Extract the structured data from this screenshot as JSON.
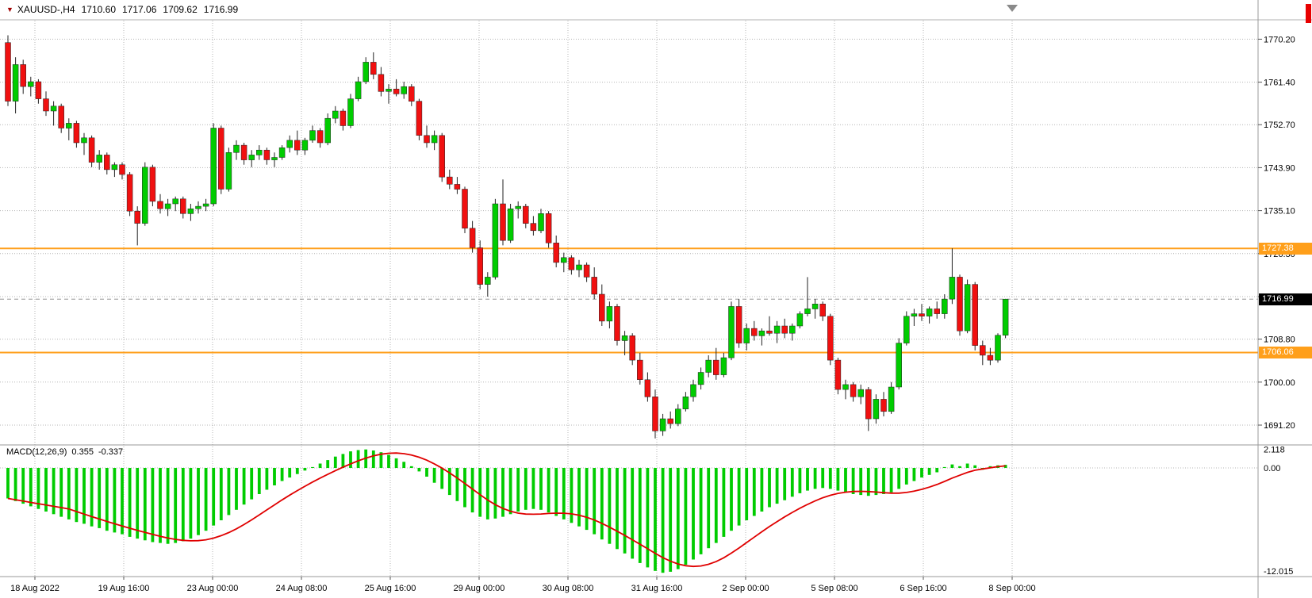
{
  "header": {
    "marker_icon": "▼",
    "symbol": "XAUUSD-,H4",
    "open": "1710.60",
    "high": "1717.06",
    "low": "1709.62",
    "close": "1716.99"
  },
  "macd_panel": {
    "label": "MACD(12,26,9)",
    "main_value": "0.355",
    "signal_value": "-0.337",
    "axis_labels": [
      "2.118",
      "0.00",
      "-12.015"
    ]
  },
  "price_axis": {
    "tick_labels": [
      "1770.20",
      "1761.40",
      "1752.70",
      "1743.90",
      "1735.10",
      "1726.30",
      "1717.50",
      "1708.80",
      "1700.00",
      "1691.20"
    ],
    "badges": [
      {
        "label": "1727.38",
        "price": 1727.38,
        "role": "resistance-level",
        "bg": "#ff9f1a",
        "fg": "#ffffff"
      },
      {
        "label": "1716.99",
        "price": 1716.99,
        "role": "current-price",
        "bg": "#000000",
        "fg": "#ffffff"
      },
      {
        "label": "1706.06",
        "price": 1706.06,
        "role": "support-level",
        "bg": "#ff9f1a",
        "fg": "#ffffff"
      }
    ]
  },
  "time_axis": {
    "tick_labels": [
      "18 Aug 2022",
      "19 Aug 16:00",
      "23 Aug 00:00",
      "24 Aug 08:00",
      "25 Aug 16:00",
      "29 Aug 00:00",
      "30 Aug 08:00",
      "31 Aug 16:00",
      "2 Sep 00:00",
      "5 Sep 08:00",
      "6 Sep 16:00",
      "8 Sep 00:00"
    ]
  },
  "chart_data": {
    "type": "candlestick",
    "symbol": "XAUUSD-",
    "timeframe": "H4",
    "title": "XAUUSD-,H4 1710.60 1717.06 1709.62 1716.99",
    "price_range": [
      1686,
      1774
    ],
    "gridline_prices": [
      1770.2,
      1761.4,
      1752.7,
      1743.9,
      1735.1,
      1726.3,
      1717.5,
      1708.8,
      1700.0,
      1691.2
    ],
    "horizontal_lines": [
      {
        "price": 1727.38,
        "color": "#ff9f1a",
        "width": 2
      },
      {
        "price": 1706.06,
        "color": "#ff9f1a",
        "width": 2
      }
    ],
    "current_price": 1716.99,
    "colors": {
      "up": "#00cc00",
      "down": "#f01010",
      "wick": "#222222",
      "grid": "#b4b4b4"
    },
    "candles": [
      [
        1769.5,
        1771.0,
        1756.5,
        1757.5
      ],
      [
        1757.5,
        1766.5,
        1755.0,
        1765.0
      ],
      [
        1765.0,
        1766.0,
        1759.0,
        1760.5
      ],
      [
        1760.5,
        1762.5,
        1758.5,
        1761.5
      ],
      [
        1761.5,
        1762.0,
        1757.0,
        1758.0
      ],
      [
        1758.0,
        1759.5,
        1754.5,
        1755.5
      ],
      [
        1755.5,
        1757.5,
        1752.5,
        1756.5
      ],
      [
        1756.5,
        1757.0,
        1751.0,
        1752.0
      ],
      [
        1752.0,
        1754.0,
        1749.5,
        1753.0
      ],
      [
        1753.0,
        1753.5,
        1748.0,
        1749.0
      ],
      [
        1749.0,
        1751.0,
        1746.5,
        1750.0
      ],
      [
        1750.0,
        1750.5,
        1744.0,
        1745.0
      ],
      [
        1745.0,
        1747.5,
        1743.5,
        1746.5
      ],
      [
        1746.5,
        1747.0,
        1742.5,
        1743.5
      ],
      [
        1743.5,
        1745.0,
        1742.0,
        1744.5
      ],
      [
        1744.5,
        1745.0,
        1741.5,
        1742.5
      ],
      [
        1742.5,
        1743.0,
        1734.0,
        1735.0
      ],
      [
        1735.0,
        1736.0,
        1728.0,
        1732.5
      ],
      [
        1732.5,
        1745.0,
        1732.0,
        1744.0
      ],
      [
        1744.0,
        1744.5,
        1736.0,
        1737.0
      ],
      [
        1737.0,
        1738.5,
        1734.5,
        1735.5
      ],
      [
        1735.5,
        1737.5,
        1734.0,
        1736.5
      ],
      [
        1736.5,
        1738.0,
        1735.0,
        1737.5
      ],
      [
        1737.5,
        1738.0,
        1733.5,
        1734.5
      ],
      [
        1734.5,
        1736.5,
        1733.0,
        1735.5
      ],
      [
        1735.5,
        1737.0,
        1734.5,
        1736.0
      ],
      [
        1736.0,
        1737.5,
        1735.0,
        1736.5
      ],
      [
        1736.5,
        1753.0,
        1736.0,
        1752.0
      ],
      [
        1752.0,
        1752.5,
        1738.5,
        1739.5
      ],
      [
        1739.5,
        1748.0,
        1739.0,
        1747.0
      ],
      [
        1747.0,
        1749.5,
        1745.5,
        1748.5
      ],
      [
        1748.5,
        1749.0,
        1744.5,
        1745.5
      ],
      [
        1745.5,
        1747.5,
        1744.0,
        1746.5
      ],
      [
        1746.5,
        1748.5,
        1745.5,
        1747.5
      ],
      [
        1747.5,
        1748.0,
        1744.5,
        1745.5
      ],
      [
        1745.5,
        1747.0,
        1744.0,
        1746.0
      ],
      [
        1746.0,
        1748.5,
        1745.5,
        1748.0
      ],
      [
        1748.0,
        1750.5,
        1747.0,
        1749.5
      ],
      [
        1749.5,
        1751.5,
        1746.5,
        1747.5
      ],
      [
        1747.5,
        1750.0,
        1746.5,
        1749.5
      ],
      [
        1749.5,
        1752.5,
        1749.0,
        1751.5
      ],
      [
        1751.5,
        1752.0,
        1748.0,
        1749.0
      ],
      [
        1749.0,
        1755.0,
        1748.5,
        1754.0
      ],
      [
        1754.0,
        1756.5,
        1753.0,
        1755.5
      ],
      [
        1755.5,
        1756.0,
        1751.5,
        1752.5
      ],
      [
        1752.5,
        1759.0,
        1752.0,
        1758.0
      ],
      [
        1758.0,
        1762.5,
        1757.5,
        1761.5
      ],
      [
        1761.5,
        1766.5,
        1761.0,
        1765.5
      ],
      [
        1765.5,
        1767.5,
        1762.0,
        1763.0
      ],
      [
        1763.0,
        1764.5,
        1758.5,
        1759.5
      ],
      [
        1759.5,
        1761.0,
        1757.0,
        1760.0
      ],
      [
        1760.0,
        1762.0,
        1758.5,
        1759.0
      ],
      [
        1759.0,
        1761.5,
        1758.0,
        1760.5
      ],
      [
        1760.5,
        1761.0,
        1756.5,
        1757.5
      ],
      [
        1757.5,
        1758.0,
        1749.5,
        1750.5
      ],
      [
        1750.5,
        1752.5,
        1748.0,
        1749.0
      ],
      [
        1749.0,
        1751.5,
        1747.5,
        1750.5
      ],
      [
        1750.5,
        1751.0,
        1741.0,
        1742.0
      ],
      [
        1742.0,
        1743.5,
        1739.5,
        1740.5
      ],
      [
        1740.5,
        1742.0,
        1738.5,
        1739.5
      ],
      [
        1739.5,
        1740.0,
        1730.5,
        1731.5
      ],
      [
        1731.5,
        1733.0,
        1726.5,
        1727.5
      ],
      [
        1727.5,
        1729.0,
        1719.0,
        1720.0
      ],
      [
        1720.0,
        1722.5,
        1717.5,
        1721.5
      ],
      [
        1721.5,
        1737.5,
        1721.0,
        1736.5
      ],
      [
        1736.5,
        1741.5,
        1728.0,
        1729.0
      ],
      [
        1729.0,
        1736.5,
        1728.5,
        1735.5
      ],
      [
        1735.5,
        1737.0,
        1733.5,
        1736.0
      ],
      [
        1736.0,
        1736.5,
        1731.5,
        1732.5
      ],
      [
        1732.5,
        1734.0,
        1730.0,
        1731.0
      ],
      [
        1731.0,
        1735.5,
        1730.5,
        1734.5
      ],
      [
        1734.5,
        1735.0,
        1727.5,
        1728.5
      ],
      [
        1728.5,
        1730.0,
        1723.5,
        1724.5
      ],
      [
        1724.5,
        1726.5,
        1722.5,
        1725.5
      ],
      [
        1725.5,
        1726.0,
        1722.0,
        1723.0
      ],
      [
        1723.0,
        1725.0,
        1721.5,
        1724.0
      ],
      [
        1724.0,
        1724.5,
        1720.5,
        1721.5
      ],
      [
        1721.5,
        1723.5,
        1717.0,
        1718.0
      ],
      [
        1718.0,
        1720.0,
        1711.5,
        1712.5
      ],
      [
        1712.5,
        1716.5,
        1711.0,
        1715.5
      ],
      [
        1715.5,
        1716.0,
        1707.5,
        1708.5
      ],
      [
        1708.5,
        1710.5,
        1705.5,
        1709.5
      ],
      [
        1709.5,
        1710.0,
        1703.5,
        1704.5
      ],
      [
        1704.5,
        1706.0,
        1699.5,
        1700.5
      ],
      [
        1700.5,
        1702.0,
        1696.0,
        1697.0
      ],
      [
        1697.0,
        1698.5,
        1688.5,
        1690.0
      ],
      [
        1690.0,
        1693.5,
        1689.0,
        1692.5
      ],
      [
        1692.5,
        1694.0,
        1690.5,
        1691.5
      ],
      [
        1691.5,
        1695.5,
        1691.0,
        1694.5
      ],
      [
        1694.5,
        1698.0,
        1694.0,
        1697.0
      ],
      [
        1697.0,
        1700.5,
        1696.0,
        1699.5
      ],
      [
        1699.5,
        1703.0,
        1698.5,
        1702.0
      ],
      [
        1702.0,
        1705.5,
        1701.0,
        1704.5
      ],
      [
        1704.5,
        1707.0,
        1700.5,
        1701.5
      ],
      [
        1701.5,
        1706.0,
        1701.0,
        1705.0
      ],
      [
        1705.0,
        1716.5,
        1704.5,
        1715.5
      ],
      [
        1715.5,
        1717.0,
        1707.0,
        1708.0
      ],
      [
        1708.0,
        1712.0,
        1706.5,
        1711.0
      ],
      [
        1711.0,
        1712.5,
        1708.5,
        1709.5
      ],
      [
        1709.5,
        1711.0,
        1707.5,
        1710.5
      ],
      [
        1710.5,
        1713.5,
        1709.5,
        1710.0
      ],
      [
        1710.0,
        1712.5,
        1708.0,
        1711.5
      ],
      [
        1711.5,
        1713.0,
        1709.0,
        1710.0
      ],
      [
        1710.0,
        1712.0,
        1708.5,
        1711.5
      ],
      [
        1711.5,
        1714.5,
        1711.0,
        1714.0
      ],
      [
        1714.0,
        1721.5,
        1713.5,
        1715.0
      ],
      [
        1715.0,
        1717.0,
        1713.0,
        1716.0
      ],
      [
        1716.0,
        1716.5,
        1712.5,
        1713.5
      ],
      [
        1713.5,
        1714.0,
        1703.5,
        1704.5
      ],
      [
        1704.5,
        1705.0,
        1697.5,
        1698.5
      ],
      [
        1698.5,
        1700.5,
        1696.5,
        1699.5
      ],
      [
        1699.5,
        1700.0,
        1696.0,
        1697.0
      ],
      [
        1697.0,
        1699.5,
        1695.5,
        1698.5
      ],
      [
        1698.5,
        1699.0,
        1690.0,
        1692.5
      ],
      [
        1692.5,
        1697.5,
        1691.5,
        1696.5
      ],
      [
        1696.5,
        1698.0,
        1693.0,
        1694.0
      ],
      [
        1694.0,
        1700.0,
        1693.5,
        1699.0
      ],
      [
        1699.0,
        1709.0,
        1698.5,
        1708.0
      ],
      [
        1708.0,
        1714.5,
        1707.5,
        1713.5
      ],
      [
        1713.5,
        1715.0,
        1711.5,
        1714.0
      ],
      [
        1714.0,
        1716.0,
        1712.5,
        1713.5
      ],
      [
        1713.5,
        1715.5,
        1712.0,
        1715.0
      ],
      [
        1715.0,
        1716.5,
        1713.0,
        1714.0
      ],
      [
        1714.0,
        1718.0,
        1713.0,
        1717.0
      ],
      [
        1717.0,
        1727.4,
        1716.0,
        1721.5
      ],
      [
        1721.5,
        1722.0,
        1709.5,
        1710.5
      ],
      [
        1710.5,
        1721.0,
        1710.0,
        1720.0
      ],
      [
        1720.0,
        1720.5,
        1706.5,
        1707.5
      ],
      [
        1707.5,
        1708.5,
        1703.5,
        1705.5
      ],
      [
        1705.5,
        1707.0,
        1703.5,
        1704.5
      ],
      [
        1704.5,
        1710.0,
        1704.0,
        1709.6
      ],
      [
        1709.6,
        1717.06,
        1709.0,
        1716.99
      ]
    ],
    "indicator": {
      "type": "MACD",
      "params": [
        12,
        26,
        9
      ],
      "main": 0.355,
      "signal": -0.337,
      "range": [
        2.118,
        -12.015
      ],
      "histogram_color": "#00cc00",
      "line_color": "#e00000",
      "histogram": [
        -3.5,
        -3.8,
        -4.1,
        -4.4,
        -4.7,
        -5.0,
        -5.3,
        -5.6,
        -5.9,
        -6.2,
        -6.4,
        -6.7,
        -6.9,
        -7.2,
        -7.4,
        -7.6,
        -7.9,
        -8.1,
        -8.3,
        -8.5,
        -8.6,
        -8.7,
        -8.6,
        -8.4,
        -8.1,
        -7.7,
        -7.2,
        -6.6,
        -6.0,
        -5.4,
        -4.8,
        -4.2,
        -3.6,
        -3.0,
        -2.5,
        -2.0,
        -1.5,
        -1.1,
        -0.7,
        -0.3,
        0.1,
        0.5,
        0.9,
        1.3,
        1.6,
        1.9,
        2.05,
        2.118,
        2.0,
        1.8,
        1.5,
        1.1,
        0.7,
        0.2,
        -0.4,
        -1.0,
        -1.7,
        -2.4,
        -3.1,
        -3.8,
        -4.5,
        -5.1,
        -5.6,
        -5.9,
        -5.8,
        -5.6,
        -5.3,
        -5.0,
        -4.8,
        -4.7,
        -4.8,
        -5.1,
        -5.5,
        -5.9,
        -6.3,
        -6.7,
        -7.1,
        -7.6,
        -8.2,
        -8.7,
        -9.3,
        -9.8,
        -10.4,
        -10.9,
        -11.4,
        -11.8,
        -12.015,
        -11.9,
        -11.6,
        -11.1,
        -10.5,
        -9.9,
        -9.2,
        -8.6,
        -7.9,
        -7.2,
        -6.6,
        -6.0,
        -5.5,
        -5.0,
        -4.5,
        -4.1,
        -3.7,
        -3.3,
        -2.9,
        -2.6,
        -2.4,
        -2.3,
        -2.4,
        -2.6,
        -2.8,
        -3.0,
        -3.1,
        -3.2,
        -3.1,
        -3.0,
        -2.8,
        -2.4,
        -1.9,
        -1.5,
        -1.1,
        -0.8,
        -0.5,
        0.1,
        0.4,
        0.2,
        0.5,
        0.3,
        -0.2,
        0.2,
        0.3,
        0.355
      ]
    }
  }
}
